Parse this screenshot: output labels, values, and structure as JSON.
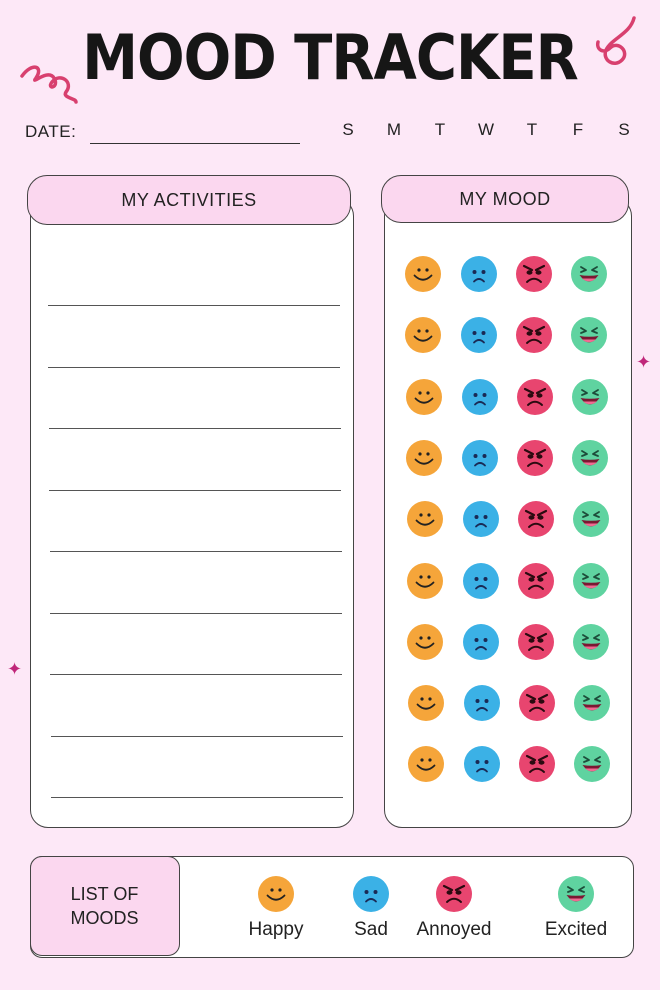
{
  "title": "MOOD TRACKER",
  "date_label": "DATE:",
  "days": [
    "S",
    "M",
    "T",
    "W",
    "T",
    "F",
    "S"
  ],
  "activities": {
    "heading": "MY ACTIVITIES",
    "line_count": 9
  },
  "mood": {
    "heading": "MY MOOD",
    "rows": 9,
    "columns": [
      "happy",
      "sad",
      "annoyed",
      "excited"
    ]
  },
  "legend": {
    "title_line1": "LIST OF",
    "title_line2": "MOODS",
    "items": [
      {
        "mood": "happy",
        "label": "Happy"
      },
      {
        "mood": "sad",
        "label": "Sad"
      },
      {
        "mood": "annoyed",
        "label": "Annoyed"
      },
      {
        "mood": "excited",
        "label": "Excited"
      }
    ]
  },
  "colors": {
    "background": "#fde8f7",
    "header_fill": "#fbd7ef",
    "happy": "#f5a53a",
    "sad": "#3bb1e6",
    "annoyed": "#e8456f",
    "excited": "#5fd3a0",
    "accent": "#d8406f"
  }
}
